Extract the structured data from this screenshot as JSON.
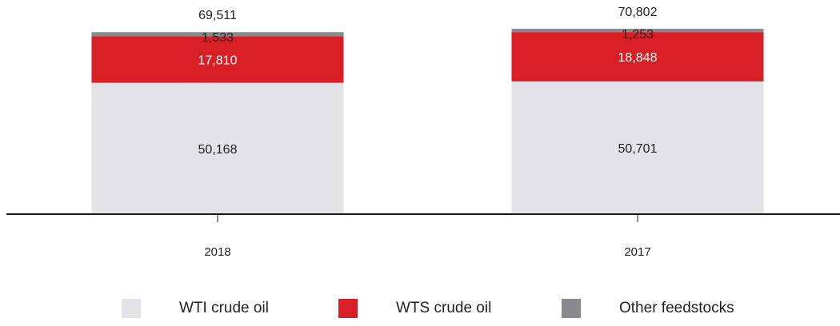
{
  "chart_data": {
    "type": "bar",
    "stacked": true,
    "categories": [
      "2018",
      "2017"
    ],
    "series": [
      {
        "name": "WTI crude oil",
        "values": [
          50168,
          50701
        ],
        "color": "#e3e3e8",
        "label_color": "#222222"
      },
      {
        "name": "WTS crude oil",
        "values": [
          17810,
          18848
        ],
        "color": "#d91f26",
        "label_color": "#ffffff"
      },
      {
        "name": "Other feedstocks",
        "values": [
          1533,
          1253
        ],
        "color": "#8a8a8e",
        "label_color": "#222222"
      }
    ],
    "totals": [
      69511,
      70802
    ],
    "value_labels": {
      "2018": {
        "wti": "50,168",
        "wts": "17,810",
        "other": "1,533",
        "total": "69,511"
      },
      "2017": {
        "wti": "50,701",
        "wts": "18,848",
        "other": "1,253",
        "total": "70,802"
      }
    },
    "ylim": [
      0,
      73000
    ],
    "grid": false,
    "legend_position": "bottom"
  }
}
